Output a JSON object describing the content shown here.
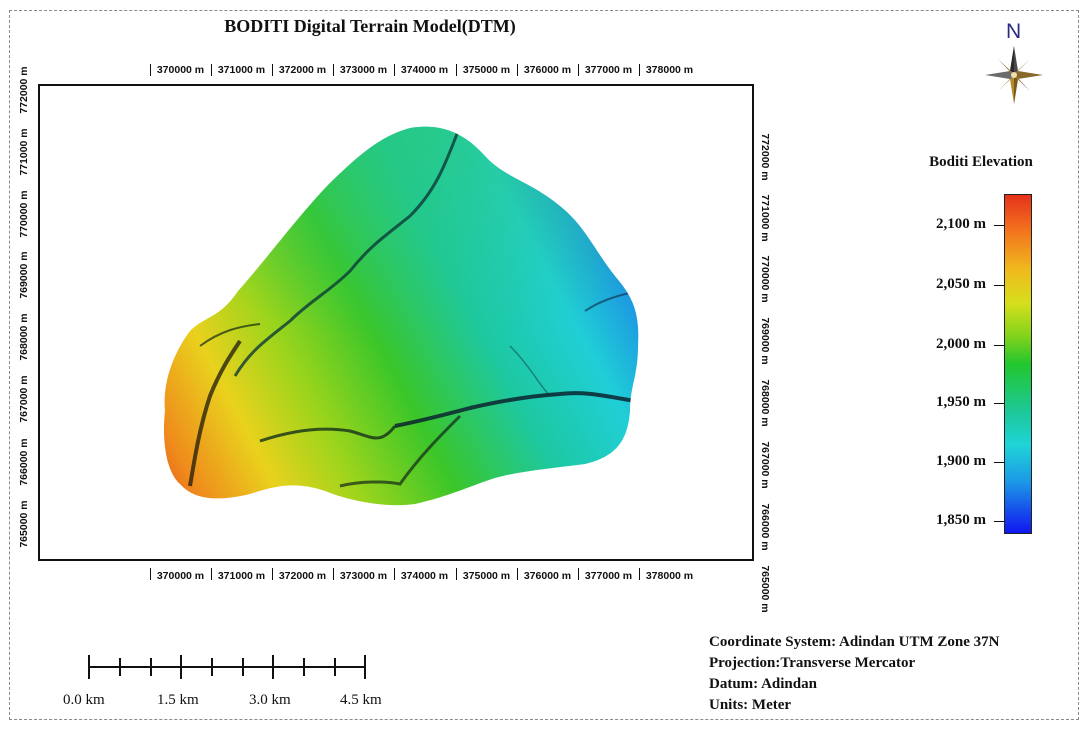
{
  "title": "BODITI Digital Terrain Model(DTM)",
  "x_ticks": [
    "370000 m",
    "371000 m",
    "372000 m",
    "373000 m",
    "374000 m",
    "375000 m",
    "376000 m",
    "377000 m",
    "378000 m"
  ],
  "y_ticks_left": [
    "772000 m",
    "771000 m",
    "770000 m",
    "769000 m",
    "768000 m",
    "767000 m",
    "766000 m",
    "765000 m"
  ],
  "y_ticks_right": [
    "772000 m",
    "771000 m",
    "770000 m",
    "769000 m",
    "768000 m",
    "767000 m",
    "766000 m",
    "765000 m"
  ],
  "north_label": "N",
  "legend": {
    "title": "Boditi Elevation",
    "labels": [
      "2,100 m",
      "2,050 m",
      "2,000 m",
      "1,950 m",
      "1,900 m",
      "1,850 m"
    ],
    "colors": [
      "#e5321b",
      "#f2701d",
      "#f0b91e",
      "#d6df1c",
      "#7fd21c",
      "#22c62e",
      "#1dc99e",
      "#1fd4d8",
      "#1c97e6",
      "#1540ec",
      "#1018f0"
    ]
  },
  "scale_bar": {
    "labels": [
      "0.0 km",
      "1.5 km",
      "3.0 km",
      "4.5 km"
    ]
  },
  "info": {
    "coordinate_system": "Coordinate System: Adindan UTM Zone 37N",
    "projection": "Projection:Transverse Mercator",
    "datum": "Datum: Adindan",
    "units": "Units: Meter"
  }
}
